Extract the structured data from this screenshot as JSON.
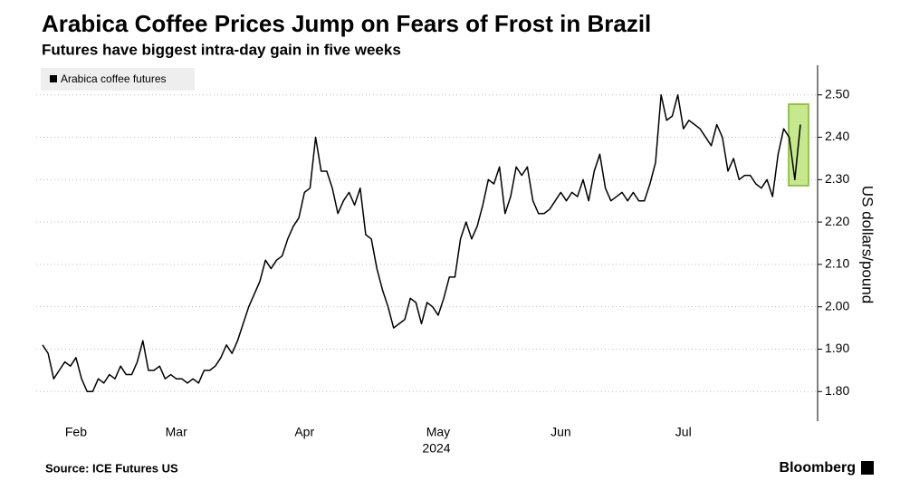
{
  "chart_data": {
    "type": "line",
    "title": "Arabica Coffee Prices Jump on Fears of Frost in Brazil",
    "subtitle": "Futures have biggest intra-day gain in five weeks",
    "ylabel": "US dollars/pound",
    "source": "Source: ICE Futures US",
    "brand": "Bloomberg",
    "year_label": "2024",
    "categories": [
      null,
      null,
      null,
      null,
      null,
      null,
      "Feb",
      null,
      null,
      null,
      null,
      null,
      null,
      null,
      null,
      null,
      null,
      null,
      null,
      null,
      null,
      null,
      null,
      null,
      "Mar",
      null,
      null,
      null,
      null,
      null,
      null,
      null,
      null,
      null,
      null,
      null,
      null,
      null,
      null,
      null,
      null,
      null,
      null,
      null,
      null,
      null,
      null,
      "Apr",
      null,
      null,
      null,
      null,
      null,
      null,
      null,
      null,
      null,
      null,
      null,
      null,
      null,
      null,
      null,
      null,
      null,
      null,
      null,
      null,
      null,
      null,
      null,
      "May",
      null,
      null,
      null,
      null,
      null,
      null,
      null,
      null,
      null,
      null,
      null,
      null,
      null,
      null,
      null,
      null,
      null,
      null,
      null,
      null,
      null,
      "Jun",
      null,
      null,
      null,
      null,
      null,
      null,
      null,
      null,
      null,
      null,
      null,
      null,
      null,
      null,
      null,
      null,
      null,
      null,
      null,
      null,
      null,
      "Jul",
      null,
      null,
      null,
      null,
      null,
      null,
      null,
      null,
      null,
      null,
      null,
      null,
      null,
      null,
      null,
      null,
      null,
      null,
      null,
      null,
      null
    ],
    "series": [
      {
        "name": "Arabica coffee futures",
        "color": "#000000",
        "values": [
          1.91,
          1.89,
          1.83,
          1.85,
          1.87,
          1.86,
          1.88,
          1.83,
          1.8,
          1.8,
          1.83,
          1.82,
          1.84,
          1.83,
          1.86,
          1.84,
          1.84,
          1.87,
          1.92,
          1.85,
          1.85,
          1.86,
          1.83,
          1.84,
          1.83,
          1.83,
          1.82,
          1.83,
          1.82,
          1.85,
          1.85,
          1.86,
          1.88,
          1.91,
          1.89,
          1.92,
          1.96,
          2.0,
          2.03,
          2.06,
          2.11,
          2.09,
          2.11,
          2.12,
          2.16,
          2.19,
          2.21,
          2.27,
          2.28,
          2.4,
          2.32,
          2.32,
          2.28,
          2.22,
          2.25,
          2.27,
          2.24,
          2.28,
          2.17,
          2.16,
          2.09,
          2.04,
          2.0,
          1.95,
          1.96,
          1.97,
          2.02,
          2.01,
          1.96,
          2.01,
          2.0,
          1.98,
          2.02,
          2.07,
          2.07,
          2.16,
          2.2,
          2.16,
          2.19,
          2.24,
          2.3,
          2.29,
          2.33,
          2.22,
          2.26,
          2.33,
          2.31,
          2.33,
          2.25,
          2.22,
          2.22,
          2.23,
          2.25,
          2.27,
          2.25,
          2.27,
          2.26,
          2.3,
          2.25,
          2.32,
          2.36,
          2.28,
          2.25,
          2.26,
          2.27,
          2.25,
          2.27,
          2.25,
          2.25,
          2.29,
          2.34,
          2.5,
          2.44,
          2.45,
          2.5,
          2.42,
          2.44,
          2.43,
          2.42,
          2.4,
          2.38,
          2.43,
          2.4,
          2.32,
          2.35,
          2.3,
          2.31,
          2.31,
          2.29,
          2.28,
          2.3,
          2.26,
          2.36,
          2.42,
          2.4,
          2.3,
          2.43
        ]
      }
    ],
    "ylim": [
      1.73,
      2.57
    ],
    "yticks": [
      {
        "value": 1.8,
        "label": "1.80"
      },
      {
        "value": 1.9,
        "label": "1.90"
      },
      {
        "value": 2.0,
        "label": "2.00"
      },
      {
        "value": 2.1,
        "label": "2.10"
      },
      {
        "value": 2.2,
        "label": "2.20"
      },
      {
        "value": 2.3,
        "label": "2.30"
      },
      {
        "value": 2.4,
        "label": "2.40"
      },
      {
        "value": 2.5,
        "label": "2.50"
      }
    ],
    "grid": true,
    "legend": "top-left"
  }
}
